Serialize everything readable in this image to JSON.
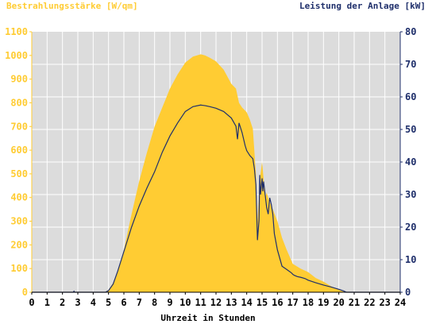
{
  "chart_data": {
    "type": "area",
    "left_axis_title": "Bestrahlungsstärke [W/qm]",
    "right_axis_title": "Leistung der Anlage [kW]",
    "xlabel": "Uhrzeit in Stunden",
    "xlim": [
      0,
      24
    ],
    "ylim_left": [
      0,
      1100
    ],
    "ylim_right": [
      0,
      80
    ],
    "x_ticks": [
      "0",
      "1",
      "2",
      "3",
      "4",
      "5",
      "6",
      "7",
      "8",
      "9",
      "10",
      "11",
      "12",
      "13",
      "14",
      "15",
      "16",
      "17",
      "18",
      "19",
      "20",
      "21",
      "22",
      "23",
      "24"
    ],
    "y_left_ticks": [
      "0",
      "100",
      "200",
      "300",
      "400",
      "500",
      "600",
      "700",
      "800",
      "900",
      "1000",
      "1100"
    ],
    "y_right_ticks": [
      "0",
      "10",
      "20",
      "30",
      "40",
      "50",
      "60",
      "70",
      "80"
    ],
    "colors": {
      "irradiance_fill": "#FFCC33",
      "power_line": "#1F2F6B",
      "plot_background": "#DCDCDC",
      "left_axis_text": "#FFCC33",
      "right_axis_text": "#1F2F6B",
      "x_axis_text": "#000000",
      "gridline": "#FFFFFF"
    },
    "series": [
      {
        "name": "Bestrahlungsstärke",
        "axis": "left",
        "type": "area",
        "x": [
          0,
          4.8,
          5.0,
          5.3,
          5.6,
          6.0,
          6.5,
          7.0,
          7.5,
          8.0,
          8.5,
          9.0,
          9.5,
          10.0,
          10.5,
          11.0,
          11.3,
          11.6,
          12.0,
          12.5,
          13.0,
          13.3,
          13.5,
          13.7,
          14.0,
          14.2,
          14.4,
          14.6,
          14.7,
          14.8,
          14.9,
          15.0,
          15.1,
          15.2,
          15.3,
          15.5,
          15.7,
          16.0,
          16.3,
          16.6,
          17.0,
          17.5,
          18.0,
          18.5,
          19.0,
          19.5,
          20.0,
          20.2,
          20.4,
          24
        ],
        "y": [
          0,
          0,
          10,
          40,
          90,
          180,
          330,
          470,
          590,
          700,
          780,
          860,
          920,
          970,
          995,
          1005,
          1000,
          990,
          975,
          940,
          880,
          860,
          800,
          780,
          760,
          730,
          690,
          500,
          300,
          400,
          500,
          550,
          480,
          400,
          420,
          380,
          350,
          300,
          230,
          180,
          120,
          100,
          85,
          60,
          45,
          25,
          10,
          5,
          0,
          0
        ]
      },
      {
        "name": "Leistung der Anlage",
        "axis": "right",
        "type": "line",
        "x": [
          0,
          2.7,
          2.75,
          2.8,
          4.8,
          5.0,
          5.3,
          5.6,
          6.0,
          6.5,
          7.0,
          7.5,
          8.0,
          8.5,
          9.0,
          9.5,
          10.0,
          10.5,
          11.0,
          11.3,
          11.6,
          12.0,
          12.5,
          13.0,
          13.3,
          13.4,
          13.5,
          13.7,
          13.9,
          14.0,
          14.2,
          14.4,
          14.5,
          14.6,
          14.7,
          14.8,
          14.85,
          14.9,
          15.0,
          15.05,
          15.1,
          15.2,
          15.3,
          15.4,
          15.5,
          15.6,
          15.7,
          15.8,
          16.0,
          16.3,
          16.6,
          16.9,
          17.0,
          17.1,
          17.3,
          17.5,
          17.8,
          18.0,
          18.5,
          19.0,
          19.5,
          20.0,
          20.3,
          20.5,
          24
        ],
        "y": [
          0,
          0,
          0.3,
          0,
          0,
          0.5,
          2.5,
          6.5,
          12.5,
          20,
          26.5,
          32,
          37,
          43,
          48,
          52,
          55.5,
          57,
          57.5,
          57.3,
          57,
          56.5,
          55.5,
          53.5,
          51,
          47,
          52,
          49,
          45,
          43.5,
          42,
          41,
          38,
          33,
          16,
          22,
          36,
          30,
          35,
          31,
          34,
          30,
          26,
          24,
          29,
          27,
          24,
          18,
          13,
          8,
          7,
          6,
          5.5,
          5.2,
          4.8,
          4.6,
          4.2,
          3.7,
          2.9,
          2.2,
          1.6,
          0.9,
          0.4,
          0,
          0
        ]
      }
    ],
    "grid": true,
    "legend": "none"
  }
}
